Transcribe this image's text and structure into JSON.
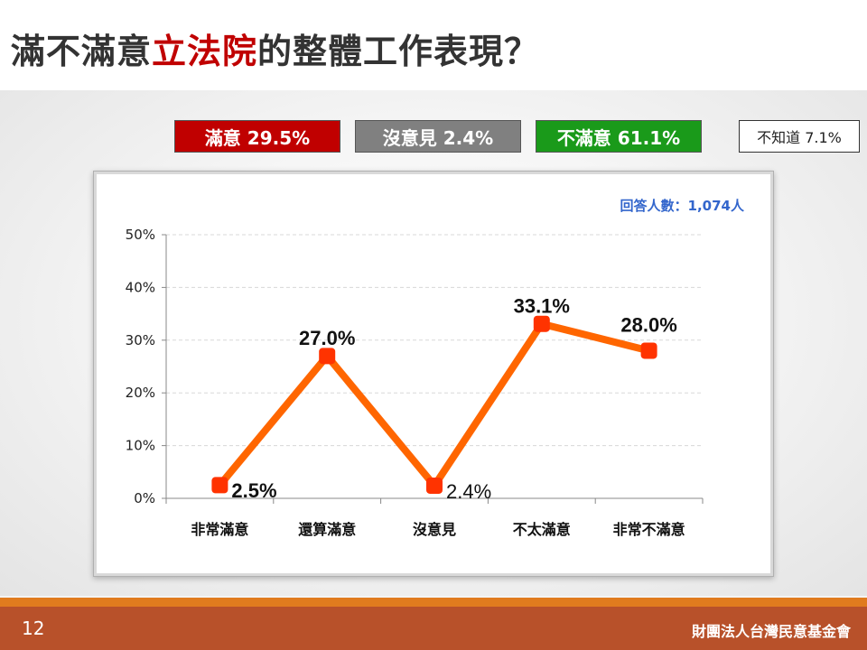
{
  "slide": {
    "title_prefix": "滿不滿意",
    "title_highlight": "立法院",
    "title_suffix": "的整體工作表現？",
    "page_number": "12",
    "organization": "財團法人台灣民意基金會"
  },
  "summary": {
    "satisfied": "滿意 29.5%",
    "no_opinion": "沒意見 2.4%",
    "dissatisfied": "不滿意 61.1%",
    "dont_know": "不知道 7.1%"
  },
  "colors": {
    "line": "#ff6600",
    "marker": "#ff3300",
    "satisfied": "#c00000",
    "no_opinion": "#808080",
    "dissatisfied": "#1a9a1a",
    "footer": "#b8512a",
    "footer_line": "#e07b1e",
    "respondents": "#3366cc"
  },
  "chart_data": {
    "type": "line",
    "categories": [
      "非常滿意",
      "還算滿意",
      "沒意見",
      "不太滿意",
      "非常不滿意"
    ],
    "values": [
      2.5,
      27.0,
      2.4,
      33.1,
      28.0
    ],
    "data_labels": [
      "2.5%",
      "27.0%",
      "2.4%",
      "33.1%",
      "28.0%"
    ],
    "ylim": [
      0,
      50
    ],
    "yticks": [
      "0%",
      "10%",
      "20%",
      "30%",
      "40%",
      "50%"
    ],
    "grid": true,
    "legend": "none",
    "annotation": "回答人數：1,074人"
  }
}
